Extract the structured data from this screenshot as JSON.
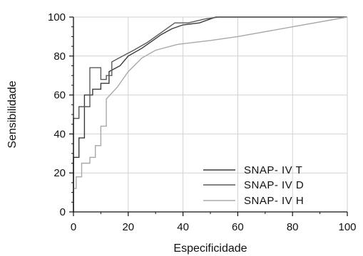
{
  "chart_data": {
    "type": "line",
    "xlabel": "Especificidade",
    "ylabel": "Sensibilidade",
    "xlim": [
      0,
      100
    ],
    "ylim": [
      0,
      100
    ],
    "x_ticks": [
      0,
      20,
      40,
      60,
      80,
      100
    ],
    "y_ticks": [
      0,
      20,
      40,
      60,
      80,
      100
    ],
    "grid": true,
    "legend_position": "bottom-right",
    "series": [
      {
        "name": "SNAP- IV T",
        "color": "#3a3a3a",
        "x": [
          0,
          0,
          2,
          2,
          4,
          4,
          7,
          7,
          10,
          10,
          13,
          13,
          17,
          20,
          25,
          29,
          32,
          36,
          40,
          46,
          52,
          55,
          60,
          80,
          100
        ],
        "y": [
          0,
          28,
          28,
          38,
          38,
          60,
          60,
          63,
          63,
          66,
          66,
          72,
          75,
          80,
          84,
          88,
          91,
          94,
          96,
          97,
          100,
          100,
          100,
          100,
          100
        ]
      },
      {
        "name": "SNAP- IV D",
        "color": "#5a5a5a",
        "x": [
          0,
          0,
          2,
          2,
          6,
          6,
          10,
          10,
          12,
          12,
          14,
          14,
          18,
          22,
          27,
          32,
          37,
          42,
          48,
          53,
          60,
          80,
          100
        ],
        "y": [
          0,
          48,
          48,
          54,
          54,
          74,
          74,
          68,
          68,
          70,
          70,
          77,
          80,
          83,
          87,
          92,
          97,
          97,
          99,
          100,
          100,
          100,
          100
        ]
      },
      {
        "name": "SNAP- IV H",
        "color": "#a8a8a8",
        "x": [
          0,
          0,
          1,
          1,
          3,
          3,
          6,
          6,
          8,
          8,
          10,
          10,
          12,
          12,
          16,
          20,
          25,
          30,
          38,
          50,
          60,
          80,
          100
        ],
        "y": [
          0,
          12,
          12,
          18,
          18,
          25,
          25,
          28,
          28,
          34,
          34,
          44,
          44,
          58,
          64,
          72,
          79,
          83,
          86,
          88,
          90,
          95,
          100
        ]
      }
    ]
  }
}
